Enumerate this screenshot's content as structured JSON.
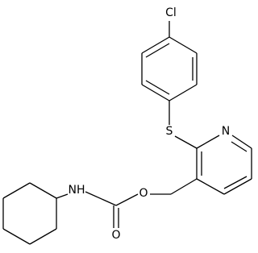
{
  "atoms": [
    {
      "label": "Cl"
    },
    {
      "label": "S"
    },
    {
      "label": "N"
    },
    {
      "label": "O"
    },
    {
      "label": "O"
    },
    {
      "label": "NH"
    }
  ]
}
